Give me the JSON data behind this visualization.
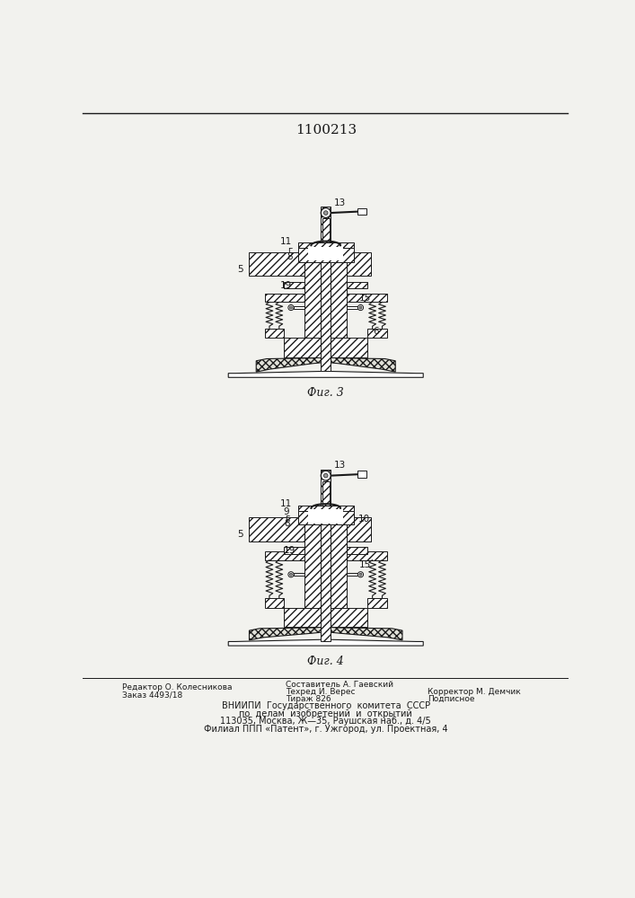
{
  "title": "1100213",
  "bg_color": "#f2f2ee",
  "fig3_caption": "Фиг. 3",
  "fig4_caption": "Фиг. 4",
  "line_color": "#1a1a1a",
  "hatch_color": "#333333"
}
